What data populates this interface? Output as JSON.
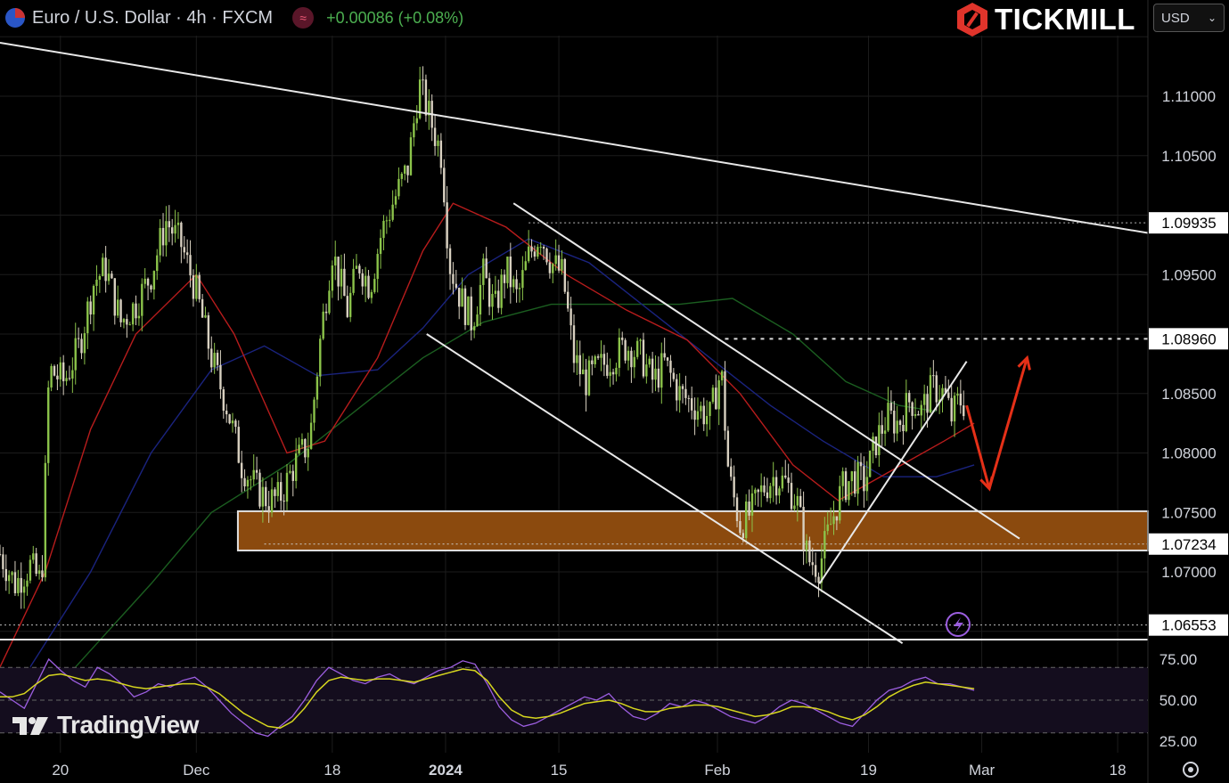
{
  "header": {
    "symbol_title": "Euro / U.S. Dollar · 4h · FXCM",
    "indicator_icon": "≈",
    "change": "+0.00086 (+0.08%)"
  },
  "brand": {
    "name": "TICKMILL"
  },
  "currency_selector": {
    "value": "USD"
  },
  "watermark": {
    "name": "TradingView"
  },
  "colors": {
    "bull": "#8bc34a",
    "bear": "#d8d0c0",
    "ma_fast": "#b71c1c",
    "ma_mid": "#1a237e",
    "ma_slow": "#1b5e20",
    "zone": "#8b4a0e",
    "arrow": "#e53018",
    "rsi": "#9c5ee0",
    "rsi_ma": "#d6d61e"
  },
  "chart_data": [
    {
      "type": "candlestick",
      "title": "Euro / U.S. Dollar · 4h · FXCM",
      "ylim": [
        1.064,
        1.1155
      ],
      "y_ticks": [
        "1.11000",
        "1.10500",
        "1.09500",
        "1.08500",
        "1.08000",
        "1.07500",
        "1.07000"
      ],
      "y_tick_values": [
        1.11,
        1.105,
        1.095,
        1.085,
        1.08,
        1.075,
        1.07
      ],
      "x_ticks": [
        {
          "label": "20",
          "t": 16
        },
        {
          "label": "Dec",
          "t": 52
        },
        {
          "label": "18",
          "t": 88
        },
        {
          "label": "2024",
          "t": 118
        },
        {
          "label": "15",
          "t": 148
        },
        {
          "label": "Feb",
          "t": 190
        },
        {
          "label": "19",
          "t": 230
        },
        {
          "label": "Mar",
          "t": 260
        },
        {
          "label": "18",
          "t": 296
        }
      ],
      "price_labels": [
        "1.09935",
        "1.08960",
        "1.07234",
        "1.06553"
      ],
      "price_label_values": [
        1.09935,
        1.0896,
        1.07234,
        1.06553
      ],
      "price_path": [
        {
          "t": 0,
          "p": 1.0715
        },
        {
          "t": 4,
          "p": 1.069
        },
        {
          "t": 8,
          "p": 1.0705
        },
        {
          "t": 11,
          "p": 1.069
        },
        {
          "t": 13,
          "p": 1.087
        },
        {
          "t": 17,
          "p": 1.086
        },
        {
          "t": 21,
          "p": 1.089
        },
        {
          "t": 25,
          "p": 1.0945
        },
        {
          "t": 28,
          "p": 1.0955
        },
        {
          "t": 32,
          "p": 1.091
        },
        {
          "t": 36,
          "p": 1.0925
        },
        {
          "t": 40,
          "p": 1.095
        },
        {
          "t": 44,
          "p": 1.0995
        },
        {
          "t": 48,
          "p": 1.0975
        },
        {
          "t": 52,
          "p": 1.0935
        },
        {
          "t": 56,
          "p": 1.088
        },
        {
          "t": 60,
          "p": 1.084
        },
        {
          "t": 64,
          "p": 1.079
        },
        {
          "t": 68,
          "p": 1.077
        },
        {
          "t": 71,
          "p": 1.076
        },
        {
          "t": 74,
          "p": 1.0762
        },
        {
          "t": 78,
          "p": 1.079
        },
        {
          "t": 82,
          "p": 1.081
        },
        {
          "t": 85,
          "p": 1.09
        },
        {
          "t": 88,
          "p": 1.097
        },
        {
          "t": 92,
          "p": 1.092
        },
        {
          "t": 95,
          "p": 1.096
        },
        {
          "t": 98,
          "p": 1.094
        },
        {
          "t": 101,
          "p": 1.0985
        },
        {
          "t": 104,
          "p": 1.101
        },
        {
          "t": 108,
          "p": 1.104
        },
        {
          "t": 111,
          "p": 1.111
        },
        {
          "t": 114,
          "p": 1.108
        },
        {
          "t": 117,
          "p": 1.105
        },
        {
          "t": 119,
          "p": 1.096
        },
        {
          "t": 122,
          "p": 1.093
        },
        {
          "t": 125,
          "p": 1.091
        },
        {
          "t": 128,
          "p": 1.095
        },
        {
          "t": 131,
          "p": 1.092
        },
        {
          "t": 134,
          "p": 1.0955
        },
        {
          "t": 137,
          "p": 1.093
        },
        {
          "t": 140,
          "p": 1.0965
        },
        {
          "t": 143,
          "p": 1.0985
        },
        {
          "t": 146,
          "p": 1.096
        },
        {
          "t": 149,
          "p": 1.095
        },
        {
          "t": 152,
          "p": 1.088
        },
        {
          "t": 155,
          "p": 1.086
        },
        {
          "t": 158,
          "p": 1.087
        },
        {
          "t": 162,
          "p": 1.088
        },
        {
          "t": 166,
          "p": 1.089
        },
        {
          "t": 170,
          "p": 1.088
        },
        {
          "t": 173,
          "p": 1.086
        },
        {
          "t": 176,
          "p": 1.0875
        },
        {
          "t": 180,
          "p": 1.085
        },
        {
          "t": 184,
          "p": 1.084
        },
        {
          "t": 188,
          "p": 1.083
        },
        {
          "t": 191,
          "p": 1.087
        },
        {
          "t": 193,
          "p": 1.078
        },
        {
          "t": 196,
          "p": 1.074
        },
        {
          "t": 199,
          "p": 1.075
        },
        {
          "t": 202,
          "p": 1.077
        },
        {
          "t": 205,
          "p": 1.078
        },
        {
          "t": 208,
          "p": 1.0775
        },
        {
          "t": 211,
          "p": 1.076
        },
        {
          "t": 214,
          "p": 1.071
        },
        {
          "t": 217,
          "p": 1.0705
        },
        {
          "t": 220,
          "p": 1.074
        },
        {
          "t": 223,
          "p": 1.077
        },
        {
          "t": 226,
          "p": 1.078
        },
        {
          "t": 229,
          "p": 1.0775
        },
        {
          "t": 232,
          "p": 1.081
        },
        {
          "t": 235,
          "p": 1.083
        },
        {
          "t": 238,
          "p": 1.0825
        },
        {
          "t": 241,
          "p": 1.0845
        },
        {
          "t": 244,
          "p": 1.0835
        },
        {
          "t": 247,
          "p": 1.0855
        },
        {
          "t": 250,
          "p": 1.085
        },
        {
          "t": 252,
          "p": 1.083
        },
        {
          "t": 254,
          "p": 1.0845
        },
        {
          "t": 256,
          "p": 1.084
        }
      ],
      "ma_fast": [
        {
          "t": 0,
          "p": 1.062
        },
        {
          "t": 12,
          "p": 1.07
        },
        {
          "t": 24,
          "p": 1.082
        },
        {
          "t": 36,
          "p": 1.09
        },
        {
          "t": 52,
          "p": 1.095
        },
        {
          "t": 62,
          "p": 1.09
        },
        {
          "t": 76,
          "p": 1.08
        },
        {
          "t": 86,
          "p": 1.081
        },
        {
          "t": 100,
          "p": 1.088
        },
        {
          "t": 112,
          "p": 1.097
        },
        {
          "t": 120,
          "p": 1.101
        },
        {
          "t": 134,
          "p": 1.099
        },
        {
          "t": 150,
          "p": 1.095
        },
        {
          "t": 166,
          "p": 1.092
        },
        {
          "t": 182,
          "p": 1.0895
        },
        {
          "t": 196,
          "p": 1.085
        },
        {
          "t": 210,
          "p": 1.079
        },
        {
          "t": 222,
          "p": 1.076
        },
        {
          "t": 236,
          "p": 1.0785
        },
        {
          "t": 250,
          "p": 1.081
        },
        {
          "t": 258,
          "p": 1.0825
        }
      ],
      "ma_mid": [
        {
          "t": 8,
          "p": 1.062
        },
        {
          "t": 24,
          "p": 1.07
        },
        {
          "t": 40,
          "p": 1.08
        },
        {
          "t": 56,
          "p": 1.087
        },
        {
          "t": 70,
          "p": 1.089
        },
        {
          "t": 84,
          "p": 1.0865
        },
        {
          "t": 100,
          "p": 1.087
        },
        {
          "t": 112,
          "p": 1.0905
        },
        {
          "t": 124,
          "p": 1.095
        },
        {
          "t": 140,
          "p": 1.098
        },
        {
          "t": 156,
          "p": 1.096
        },
        {
          "t": 172,
          "p": 1.092
        },
        {
          "t": 188,
          "p": 1.088
        },
        {
          "t": 204,
          "p": 1.084
        },
        {
          "t": 218,
          "p": 1.081
        },
        {
          "t": 234,
          "p": 1.078
        },
        {
          "t": 248,
          "p": 1.078
        },
        {
          "t": 258,
          "p": 1.079
        }
      ],
      "ma_slow": [
        {
          "t": 20,
          "p": 1.062
        },
        {
          "t": 40,
          "p": 1.069
        },
        {
          "t": 56,
          "p": 1.075
        },
        {
          "t": 76,
          "p": 1.079
        },
        {
          "t": 96,
          "p": 1.084
        },
        {
          "t": 112,
          "p": 1.088
        },
        {
          "t": 128,
          "p": 1.091
        },
        {
          "t": 146,
          "p": 1.0925
        },
        {
          "t": 164,
          "p": 1.0925
        },
        {
          "t": 180,
          "p": 1.0925
        },
        {
          "t": 194,
          "p": 1.093
        },
        {
          "t": 210,
          "p": 1.09
        },
        {
          "t": 224,
          "p": 1.086
        },
        {
          "t": 238,
          "p": 1.084
        },
        {
          "t": 248,
          "p": 1.0835
        }
      ],
      "trendlines": [
        {
          "name": "long-term-resistance",
          "a": {
            "t": 0,
            "p": 1.1145
          },
          "b": {
            "t": 304,
            "p": 1.0985
          }
        },
        {
          "name": "channel-upper",
          "a": {
            "t": 136,
            "p": 1.101
          },
          "b": {
            "t": 270,
            "p": 1.0728
          }
        },
        {
          "name": "channel-lower",
          "a": {
            "t": 113,
            "p": 1.09
          },
          "b": {
            "t": 239,
            "p": 1.064
          }
        },
        {
          "name": "rising-support",
          "a": {
            "t": 217,
            "p": 1.069
          },
          "b": {
            "t": 256,
            "p": 1.0877
          }
        }
      ],
      "zone": {
        "p_top": 1.0751,
        "p_bottom": 1.0718,
        "t_start": 63,
        "t_end": 304
      },
      "arrows": [
        {
          "name": "down-arrow",
          "from": {
            "t": 256,
            "p": 1.084
          },
          "to": {
            "t": 262,
            "p": 1.077
          }
        },
        {
          "name": "up-arrow",
          "from": {
            "t": 262,
            "p": 1.077
          },
          "to": {
            "t": 272,
            "p": 1.088
          }
        }
      ]
    },
    {
      "type": "line",
      "title": "RSI",
      "ylim": [
        20,
        85
      ],
      "y_ticks": [
        "75.00",
        "50.00",
        "25.00"
      ],
      "y_tick_values": [
        75,
        50,
        25
      ],
      "levels": [
        70,
        50,
        30
      ],
      "series": [
        {
          "values": [
            55,
            50,
            45,
            60,
            75,
            68,
            62,
            58,
            70,
            66,
            60,
            52,
            55,
            60,
            58,
            62,
            64,
            58,
            50,
            42,
            36,
            30,
            28,
            34,
            40,
            50,
            62,
            70,
            66,
            62,
            60,
            64,
            66,
            62,
            60,
            64,
            68,
            70,
            74,
            72,
            60,
            46,
            38,
            34,
            36,
            40,
            44,
            48,
            52,
            50,
            54,
            46,
            40,
            38,
            42,
            48,
            46,
            50,
            48,
            44,
            40,
            38,
            36,
            40,
            46,
            50,
            48,
            44,
            40,
            36,
            34,
            42,
            50,
            56,
            58,
            62,
            64,
            60,
            60,
            58,
            56
          ]
        },
        {
          "values": [
            52,
            52,
            54,
            60,
            65,
            66,
            64,
            62,
            63,
            62,
            60,
            58,
            57,
            58,
            59,
            60,
            60,
            58,
            54,
            48,
            42,
            38,
            34,
            33,
            37,
            45,
            55,
            62,
            64,
            63,
            62,
            63,
            63,
            62,
            61,
            63,
            65,
            67,
            69,
            68,
            62,
            52,
            44,
            40,
            39,
            40,
            42,
            45,
            48,
            49,
            50,
            48,
            45,
            43,
            43,
            45,
            46,
            47,
            47,
            46,
            44,
            42,
            40,
            41,
            43,
            46,
            46,
            45,
            43,
            40,
            38,
            41,
            46,
            52,
            56,
            59,
            61,
            60,
            59,
            58,
            57
          ]
        }
      ],
      "t_range": [
        0,
        258
      ]
    }
  ]
}
